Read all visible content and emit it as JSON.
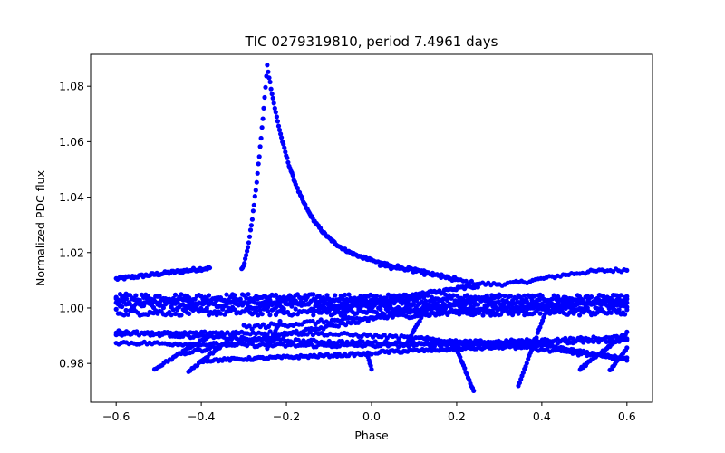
{
  "chart_data": {
    "type": "scatter",
    "title": "TIC 0279319810, period 7.4961 days",
    "xlabel": "Phase",
    "ylabel": "Normalized PDC flux",
    "xlim": [
      -0.66,
      0.66
    ],
    "ylim": [
      0.966,
      1.0915
    ],
    "x_ticks": [
      -0.6,
      -0.4,
      -0.2,
      0.0,
      0.2,
      0.4,
      0.6
    ],
    "x_tick_labels": [
      "−0.6",
      "−0.4",
      "−0.2",
      "0.0",
      "0.2",
      "0.4",
      "0.6"
    ],
    "y_ticks": [
      0.98,
      1.0,
      1.02,
      1.04,
      1.06,
      1.08
    ],
    "y_tick_labels": [
      "0.98",
      "1.00",
      "1.02",
      "1.04",
      "1.06",
      "1.08"
    ],
    "marker_color": "#0000ff",
    "series": [
      {
        "name": "upper band",
        "kind": "segment",
        "x0": -0.6,
        "y0": 1.0105,
        "x1": -0.38,
        "y1": 1.0145,
        "n": 70,
        "jitter": 0.0006
      },
      {
        "name": "upper band right",
        "kind": "segment",
        "x0": 0.02,
        "y0": 1.016,
        "x1": 0.6,
        "y1": 1.014,
        "n": 90,
        "jitter": 0.0006,
        "shape": "dip",
        "dip_center": 0.28,
        "dip_depth": 0.0065
      },
      {
        "name": "flare",
        "kind": "flare",
        "x_start": -0.305,
        "x_peak": -0.245,
        "x_end": 0.0,
        "baseline": 1.0145,
        "peak": 1.0875,
        "n_rise": 30,
        "n_decay": 110
      },
      {
        "name": "flare tail",
        "kind": "segment",
        "x0": 0.0,
        "y0": 1.017,
        "x1": 0.2,
        "y1": 1.0105,
        "n": 40,
        "jitter": 0.0005
      },
      {
        "name": "core band 1",
        "kind": "segment",
        "x0": -0.6,
        "y0": 1.004,
        "x1": 0.6,
        "y1": 1.0035,
        "n": 260,
        "jitter": 0.0012
      },
      {
        "name": "core band 2",
        "kind": "segment",
        "x0": -0.6,
        "y0": 1.001,
        "x1": 0.6,
        "y1": 1.0005,
        "n": 260,
        "jitter": 0.0012
      },
      {
        "name": "core band 3",
        "kind": "segment",
        "x0": -0.6,
        "y0": 0.9985,
        "x1": 0.6,
        "y1": 0.9985,
        "n": 260,
        "jitter": 0.0012
      },
      {
        "name": "core band 4",
        "kind": "segment",
        "x0": -0.6,
        "y0": 1.0025,
        "x1": 0.6,
        "y1": 1.002,
        "n": 200,
        "jitter": 0.001
      },
      {
        "name": "upper ramp",
        "kind": "segment",
        "x0": -0.1,
        "y0": 1.0,
        "x1": 0.25,
        "y1": 1.008,
        "n": 90,
        "jitter": 0.0008
      },
      {
        "name": "mid ramp",
        "kind": "segment",
        "x0": -0.3,
        "y0": 0.993,
        "x1": 0.6,
        "y1": 1.003,
        "n": 140,
        "jitter": 0.0008
      },
      {
        "name": "band 0.991",
        "kind": "segment",
        "x0": -0.6,
        "y0": 0.9915,
        "x1": 0.6,
        "y1": 0.9895,
        "n": 200,
        "jitter": 0.0006,
        "shape": "bow",
        "bow": -0.003
      },
      {
        "name": "band 0.988",
        "kind": "segment",
        "x0": -0.6,
        "y0": 0.9875,
        "x1": 0.6,
        "y1": 0.9885,
        "n": 200,
        "jitter": 0.0006,
        "shape": "bow",
        "bow": -0.0015
      },
      {
        "name": "cross down",
        "kind": "segment",
        "x0": -0.6,
        "y0": 0.9905,
        "x1": 0.6,
        "y1": 0.9815,
        "n": 180,
        "jitter": 0.0006,
        "shape": "bow",
        "bow": 0.004
      },
      {
        "name": "cross up",
        "kind": "segment",
        "x0": -0.45,
        "y0": 0.9835,
        "x1": 0.3,
        "y1": 1.0045,
        "n": 130,
        "jitter": 0.0006
      },
      {
        "name": "lower band",
        "kind": "segment",
        "x0": -0.4,
        "y0": 0.981,
        "x1": 0.0,
        "y1": 0.9835,
        "n": 90,
        "jitter": 0.0005
      },
      {
        "name": "lower band right",
        "kind": "segment",
        "x0": 0.01,
        "y0": 0.984,
        "x1": 0.4,
        "y1": 0.9865,
        "n": 90,
        "jitter": 0.0005
      },
      {
        "name": "lower band far right",
        "kind": "segment",
        "x0": 0.4,
        "y0": 0.9865,
        "x1": 0.6,
        "y1": 0.9815,
        "n": 50,
        "jitter": 0.0005
      },
      {
        "name": "dip at 0",
        "kind": "segment",
        "x0": -0.01,
        "y0": 0.9835,
        "x1": 0.0,
        "y1": 0.978,
        "n": 6,
        "jitter": 0.0002
      },
      {
        "name": "drop left",
        "kind": "segment",
        "x0": -0.51,
        "y0": 0.978,
        "x1": -0.38,
        "y1": 0.99,
        "n": 30,
        "jitter": 0.0004
      },
      {
        "name": "drop left 2",
        "kind": "segment",
        "x0": -0.43,
        "y0": 0.977,
        "x1": -0.32,
        "y1": 0.9905,
        "n": 28,
        "jitter": 0.0004
      },
      {
        "name": "drop mid",
        "kind": "segment",
        "x0": -0.245,
        "y0": 0.9855,
        "x1": -0.215,
        "y1": 0.995,
        "n": 12,
        "jitter": 0.0003
      },
      {
        "name": "rise 0.08",
        "kind": "segment",
        "x0": 0.08,
        "y0": 0.9865,
        "x1": 0.13,
        "y1": 1.0,
        "n": 16,
        "jitter": 0.0003
      },
      {
        "name": "fall 0.2",
        "kind": "segment",
        "x0": 0.195,
        "y0": 0.987,
        "x1": 0.24,
        "y1": 0.97,
        "n": 18,
        "jitter": 0.0003
      },
      {
        "name": "rise 0.35",
        "kind": "segment",
        "x0": 0.345,
        "y0": 0.972,
        "x1": 0.41,
        "y1": 0.999,
        "n": 24,
        "jitter": 0.0003
      },
      {
        "name": "fall right",
        "kind": "segment",
        "x0": 0.49,
        "y0": 0.978,
        "x1": 0.6,
        "y1": 0.991,
        "n": 34,
        "jitter": 0.0004
      },
      {
        "name": "fall right 2",
        "kind": "segment",
        "x0": 0.56,
        "y0": 0.9775,
        "x1": 0.6,
        "y1": 0.9855,
        "n": 14,
        "jitter": 0.0003
      }
    ]
  }
}
